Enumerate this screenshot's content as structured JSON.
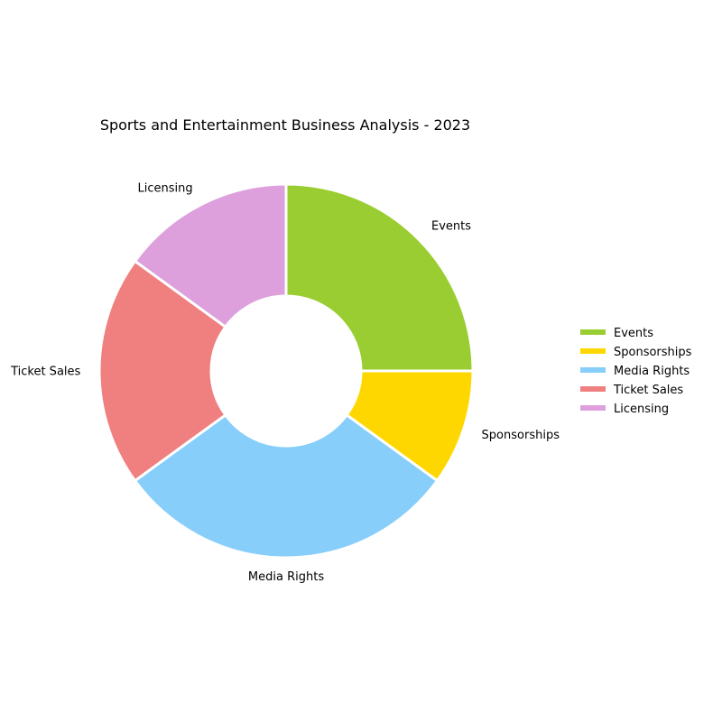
{
  "chart_data": {
    "type": "pie",
    "variant": "donut",
    "title": "Sports and Entertainment Business Analysis - 2023",
    "categories": [
      "Events",
      "Sponsorships",
      "Media Rights",
      "Ticket Sales",
      "Licensing"
    ],
    "values": [
      25,
      10,
      30,
      20,
      15
    ],
    "colors": [
      "#9acd32",
      "#ffd700",
      "#87cefa",
      "#f08080",
      "#dda0dd"
    ],
    "slice_order": "clockwise from top",
    "slice_edge_color": "#ffffff",
    "legend_position": "right",
    "grid": false
  }
}
